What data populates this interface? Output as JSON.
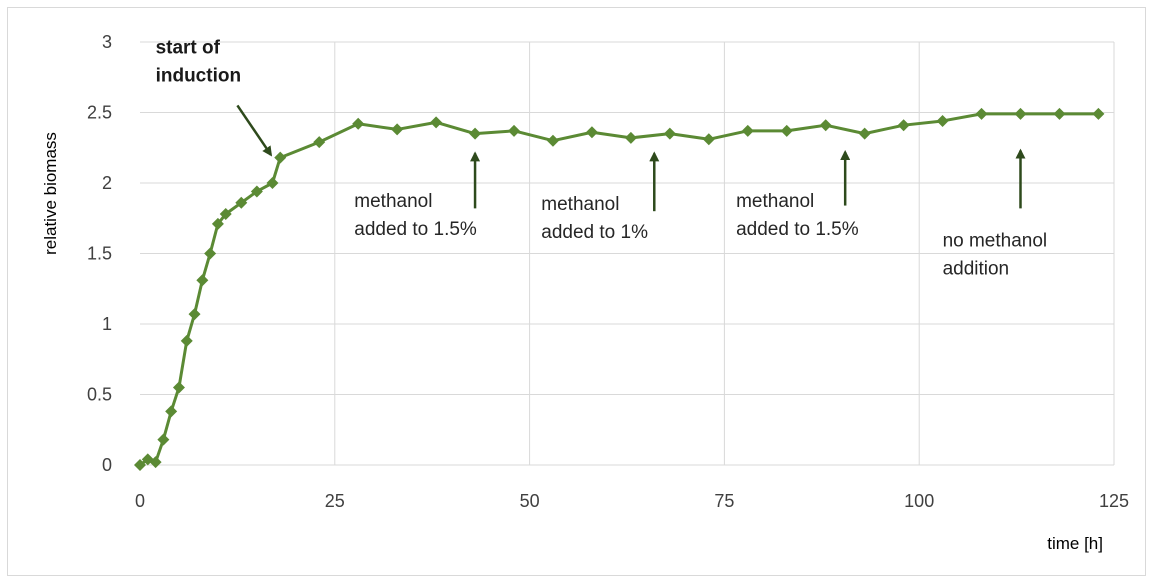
{
  "chart_data": {
    "type": "line",
    "xlabel": "time [h]",
    "ylabel": "relative biomass",
    "xlim": [
      0,
      125
    ],
    "ylim": [
      0,
      3
    ],
    "x_ticks": [
      "0",
      "25",
      "50",
      "75",
      "100",
      "125"
    ],
    "y_ticks": [
      "0",
      "0.5",
      "1",
      "1.5",
      "2",
      "2.5",
      "3"
    ],
    "grid": "major",
    "legend": "none",
    "series": [
      {
        "color": "#5b8a34",
        "marker": "diamond",
        "x": [
          0,
          1,
          2,
          3,
          4,
          5,
          6,
          7,
          8,
          9,
          10,
          11,
          13,
          15,
          17,
          18,
          23,
          28,
          33,
          38,
          43,
          48,
          53,
          58,
          63,
          68,
          73,
          78,
          83,
          88,
          93,
          98,
          103,
          108,
          113,
          118,
          123
        ],
        "y": [
          0,
          0.04,
          0.02,
          0.18,
          0.38,
          0.55,
          0.88,
          1.07,
          1.31,
          1.5,
          1.71,
          1.78,
          1.86,
          1.94,
          2.0,
          2.18,
          2.29,
          2.42,
          2.38,
          2.43,
          2.35,
          2.37,
          2.3,
          2.36,
          2.32,
          2.35,
          2.31,
          2.37,
          2.37,
          2.41,
          2.35,
          2.41,
          2.44,
          2.49,
          2.49,
          2.49,
          2.49
        ]
      }
    ],
    "annotations": [
      {
        "lines": [
          "start of",
          "induction"
        ],
        "bold": true,
        "arrow_from": [
          12.5,
          2.55
        ],
        "arrow_to": [
          16.8,
          2.2
        ],
        "text_x": 2,
        "text_y": 2.92
      },
      {
        "lines": [
          "methanol",
          "added to 1.5%"
        ],
        "bold": false,
        "arrow_from": [
          43,
          1.82
        ],
        "arrow_to": [
          43,
          2.21
        ],
        "text_x": 27.5,
        "text_y": 1.83
      },
      {
        "lines": [
          "methanol",
          "added to 1%"
        ],
        "bold": false,
        "arrow_from": [
          66,
          1.8
        ],
        "arrow_to": [
          66,
          2.21
        ],
        "text_x": 51.5,
        "text_y": 1.81
      },
      {
        "lines": [
          "methanol",
          "added to 1.5%"
        ],
        "bold": false,
        "arrow_from": [
          90.5,
          1.84
        ],
        "arrow_to": [
          90.5,
          2.22
        ],
        "text_x": 76.5,
        "text_y": 1.83
      },
      {
        "lines": [
          "no methanol",
          "addition"
        ],
        "bold": false,
        "arrow_from": [
          113,
          1.82
        ],
        "arrow_to": [
          113,
          2.23
        ],
        "text_x": 103,
        "text_y": 1.55
      }
    ]
  }
}
